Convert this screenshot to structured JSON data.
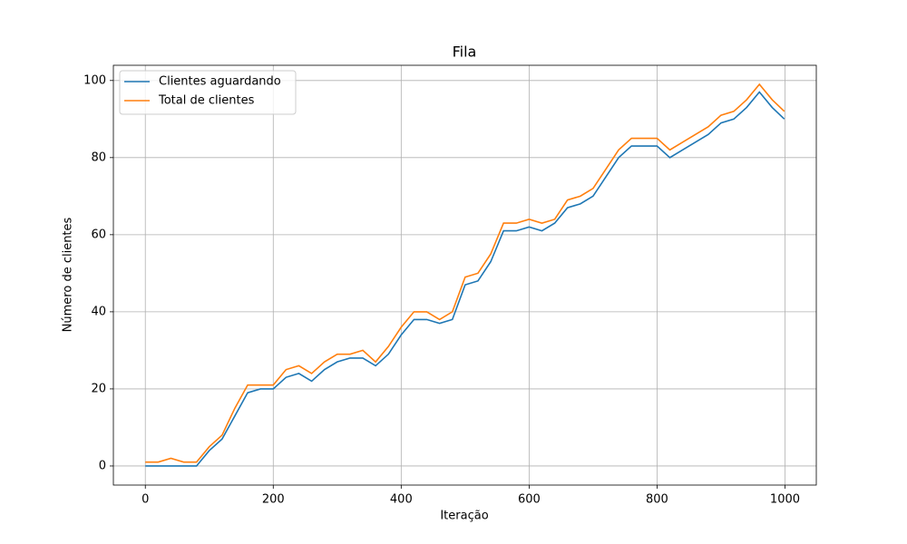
{
  "chart_data": {
    "type": "line",
    "title": "Fila",
    "xlabel": "Iteração",
    "ylabel": "Número de clientes",
    "x": [
      0,
      20,
      40,
      60,
      80,
      100,
      120,
      140,
      160,
      180,
      200,
      220,
      240,
      260,
      280,
      300,
      320,
      340,
      360,
      380,
      400,
      420,
      440,
      460,
      480,
      500,
      520,
      540,
      560,
      580,
      600,
      620,
      640,
      660,
      680,
      700,
      720,
      740,
      760,
      780,
      800,
      820,
      840,
      860,
      880,
      900,
      920,
      940,
      960,
      980,
      999
    ],
    "series": [
      {
        "name": "Clientes aguardando",
        "color": "#1f77b4",
        "values": [
          0,
          0,
          0,
          0,
          0,
          4,
          7,
          13,
          19,
          20,
          20,
          23,
          24,
          22,
          25,
          27,
          28,
          28,
          26,
          29,
          34,
          38,
          38,
          37,
          38,
          47,
          48,
          53,
          61,
          61,
          62,
          61,
          63,
          67,
          68,
          70,
          75,
          80,
          83,
          83,
          83,
          80,
          82,
          84,
          86,
          89,
          90,
          93,
          97,
          93,
          90
        ]
      },
      {
        "name": "Total de clientes",
        "color": "#ff7f0e",
        "values": [
          1,
          1,
          2,
          1,
          1,
          5,
          8,
          15,
          21,
          21,
          21,
          25,
          26,
          24,
          27,
          29,
          29,
          30,
          27,
          31,
          36,
          40,
          40,
          38,
          40,
          49,
          50,
          55,
          63,
          63,
          64,
          63,
          64,
          69,
          70,
          72,
          77,
          82,
          85,
          85,
          85,
          82,
          84,
          86,
          88,
          91,
          92,
          95,
          99,
          95,
          92
        ]
      }
    ],
    "xlim": [
      -49.95,
      1048.95
    ],
    "ylim": [
      -4.95,
      103.95
    ],
    "xticks": [
      0,
      200,
      400,
      600,
      800,
      1000
    ],
    "yticks": [
      0,
      20,
      40,
      60,
      80,
      100
    ],
    "grid": true,
    "legend": "upper left"
  }
}
